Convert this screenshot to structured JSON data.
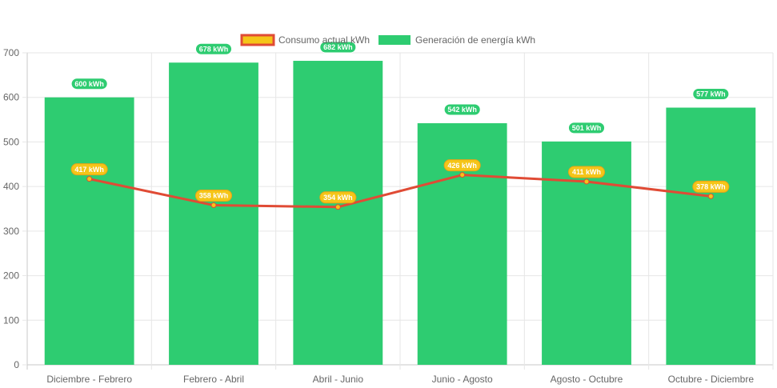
{
  "chart_data": {
    "type": "bar",
    "categories": [
      "Diciembre - Febrero",
      "Febrero - Abril",
      "Abril - Junio",
      "Junio - Agosto",
      "Agosto - Octubre",
      "Octubre - Diciembre"
    ],
    "series": [
      {
        "name": "Consumo actual kWh",
        "type": "line",
        "values": [
          417,
          358,
          354,
          426,
          411,
          378
        ],
        "labels": [
          "417 kWh",
          "358 kWh",
          "354 kWh",
          "426 kWh",
          "411 kWh",
          "378 kWh"
        ],
        "line_color": "#e04b35",
        "fill_color": "#f5c518"
      },
      {
        "name": "Generación de energía kWh",
        "type": "bar",
        "values": [
          600,
          678,
          682,
          542,
          501,
          577
        ],
        "labels": [
          "600 kWh",
          "678 kWh",
          "682 kWh",
          "542 kWh",
          "501 kWh",
          "577 kWh"
        ],
        "color": "#2ecc71"
      }
    ],
    "y_ticks": [
      "0",
      "100",
      "200",
      "300",
      "400",
      "500",
      "600",
      "700"
    ],
    "ylim": [
      0,
      700
    ],
    "grid": true,
    "legend_position": "top"
  }
}
